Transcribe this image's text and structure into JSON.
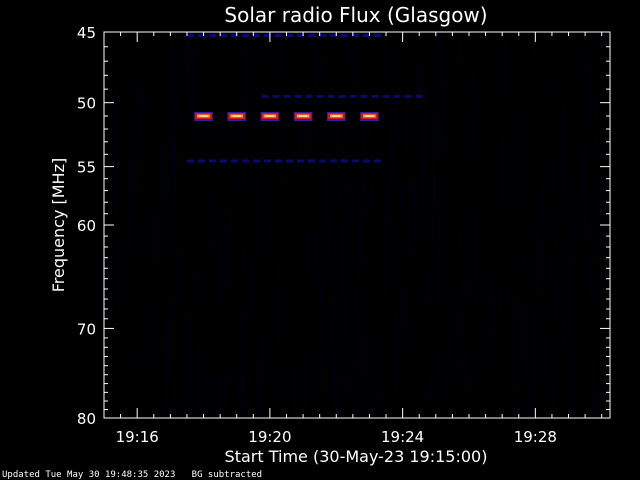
{
  "chart_data": {
    "type": "heatmap",
    "title": "Solar radio Flux (Glasgow)",
    "xlabel": "Start Time (30-May-23 19:15:00)",
    "ylabel": "Frequency [MHz]",
    "xlim": [
      "19:15:00",
      "19:30:15"
    ],
    "ylim": [
      45,
      80
    ],
    "y_scale": "log",
    "x_ticks": [
      "19:16",
      "19:20",
      "19:24",
      "19:28"
    ],
    "y_ticks": [
      45,
      50,
      55,
      60,
      70,
      80
    ],
    "background_color": "#000000",
    "colormap": [
      "#000014",
      "#0a0a6e",
      "#3a1c9a",
      "#d01818",
      "#ff9a3a",
      "#ffffd0"
    ],
    "bursts": [
      {
        "start": "19:17:45",
        "end": "19:18:15",
        "frequency_mhz": 51
      },
      {
        "start": "19:18:45",
        "end": "19:19:15",
        "frequency_mhz": 51
      },
      {
        "start": "19:19:45",
        "end": "19:20:15",
        "frequency_mhz": 51
      },
      {
        "start": "19:20:45",
        "end": "19:21:15",
        "frequency_mhz": 51
      },
      {
        "start": "19:21:45",
        "end": "19:22:15",
        "frequency_mhz": 51
      },
      {
        "start": "19:22:45",
        "end": "19:23:15",
        "frequency_mhz": 51
      }
    ],
    "faint_emission": [
      {
        "start": "19:17:30",
        "end": "19:23:15",
        "frequency_mhz": 45.2
      },
      {
        "start": "19:17:30",
        "end": "19:23:15",
        "frequency_mhz": 54.5
      },
      {
        "start": "19:19:45",
        "end": "19:24:30",
        "frequency_mhz": 49.5
      }
    ]
  },
  "footer": {
    "updated": "Updated Tue May 30 19:48:35 2023",
    "note": "BG subtracted"
  }
}
